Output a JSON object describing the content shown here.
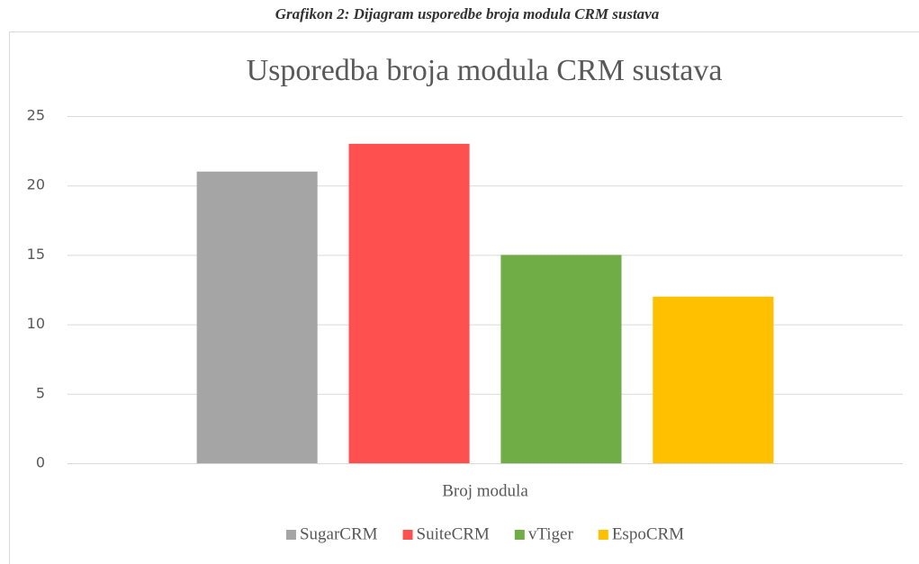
{
  "caption": "Grafikon 2: Dijagram usporedbe broja modula CRM sustava",
  "chart_data": {
    "type": "bar",
    "title": "Usporedba broja modula CRM sustava",
    "categories": [
      "Broj modula"
    ],
    "series": [
      {
        "name": "SugarCRM",
        "color": "#a5a5a5",
        "values": [
          21
        ]
      },
      {
        "name": "SuiteCRM",
        "color": "#ff5050",
        "values": [
          23
        ]
      },
      {
        "name": "vTiger",
        "color": "#70ad47",
        "values": [
          15
        ]
      },
      {
        "name": "EspoCRM",
        "color": "#ffc000",
        "values": [
          12
        ]
      }
    ],
    "ylim": [
      0,
      25
    ],
    "yticks": [
      0,
      5,
      10,
      15,
      20,
      25
    ],
    "grid": true,
    "legend": "bottom"
  }
}
